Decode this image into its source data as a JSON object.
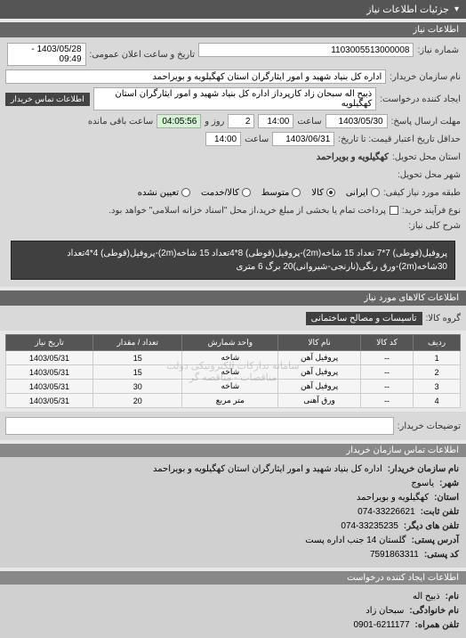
{
  "header": {
    "title": "جزئیات اطلاعات نیاز",
    "arrow": "▾"
  },
  "sections": {
    "info": "اطلاعات نیاز"
  },
  "form": {
    "need_no_label": "شماره نیاز:",
    "need_no": "1103005513000008",
    "announce_label": "تاریخ و ساعت اعلان عمومی:",
    "announce_value": "1403/05/28 - 09:49",
    "buyer_label": "نام سازمان خریدار:",
    "buyer_value": "اداره کل بنیاد شهید و امور ایثارگران استان کهگیلویه و بویراحمد",
    "creator_label": "ایجاد کننده درخواست:",
    "creator_value": "ذبیح اله سبحان زاد کارپرداز اداره کل بنیاد شهید و امور ایثارگران استان کهگیلویه",
    "contact_btn": "اطلاعات تماس خریدار",
    "deadline_send_label": "مهلت ارسال پاسخ:",
    "deadline_date": "1403/05/30",
    "time_label": "ساعت",
    "deadline_time": "14:00",
    "days_label": "روز و",
    "days_value": "2",
    "remain_label": "ساعت باقی مانده",
    "remain_value": "04:05:56",
    "price_deadline_label": "حداقل تاریخ اعتبار قیمت: تا تاریخ:",
    "price_date": "1403/06/31",
    "price_time": "14:00",
    "province_label": "استان محل تحویل:",
    "province_value": "کهگیلویه و بویراحمد",
    "city_label": "شهر محل تحویل:",
    "quality_label": "طبقه مورد نیاز کیفی:",
    "quality_opts": [
      "ایرانی",
      "کالا",
      "متوسط",
      "کالا/خدمت",
      "تعیین نشده"
    ],
    "process_label": "نوع فرآیند خرید:",
    "process_note": "پرداخت تمام یا بخشی از مبلغ خرید،از محل \"اسناد خزانه اسلامی\" خواهد بود.",
    "desc_label": "شرح کلی نیاز:",
    "desc_value": "پروفیل(قوطی) 7*7 تعداد 15 شاخه(2m)-پروفیل(قوطی) 8*4تعداد 15 شاخه(2m)-پروفیل(قوطی) 4*4تعداد 30شاخه(2m)-ورق رنگی(نارنجی-شیروانی)20 برگ 6 متری"
  },
  "goods": {
    "title": "اطلاعات کالاهای مورد نیاز",
    "group_label": "گروه کالا:",
    "group_value": "تاسیسات و مصالح ساختمانی",
    "columns": [
      "ردیف",
      "کد کالا",
      "نام کالا",
      "واحد شمارش",
      "تعداد / مقدار",
      "تاریخ نیاز"
    ],
    "rows": [
      [
        "1",
        "--",
        "پروفیل آهن",
        "شاخه",
        "15",
        "1403/05/31"
      ],
      [
        "2",
        "--",
        "پروفیل آهن",
        "شاخه",
        "15",
        "1403/05/31"
      ],
      [
        "3",
        "--",
        "پروفیل آهن",
        "شاخه",
        "30",
        "1403/05/31"
      ],
      [
        "4",
        "--",
        "ورق آهنی",
        "متر مربع",
        "20",
        "1403/05/31"
      ]
    ],
    "watermark": "سامانه تدارکات الکترونیکی دولت\nمناقصات - مناقصه گر",
    "buyer_notes_label": "توضیحات خریدار:"
  },
  "org": {
    "title": "اطلاعات تماس سازمان خریدار",
    "labels": {
      "name": "نام سازمان خریدار:",
      "city": "شهر:",
      "province": "استان:",
      "phone": "تلفن ثابت:",
      "other_phone": "تلفن های دیگر:",
      "address": "آدرس پستی:",
      "postal": "کد پستی:"
    },
    "values": {
      "name": "اداره کل بنیاد شهید و امور ایثارگران استان کهگیلویه و بویراحمد",
      "city": "یاسوج",
      "province": "کهگیلویه و بویراحمد",
      "phone": "074-33226621",
      "other_phone": "074-33235235",
      "address": "گلستان 14 جنب اداره پست",
      "postal": "7591863311"
    }
  },
  "requester": {
    "title": "اطلاعات ایجاد کننده درخواست",
    "labels": {
      "name": "نام:",
      "family": "نام خانوادگی:",
      "mobile": "تلفن همراه:"
    },
    "values": {
      "name": "ذبیح اله",
      "family": "سبحان زاد",
      "mobile": "0901-6211177"
    }
  }
}
